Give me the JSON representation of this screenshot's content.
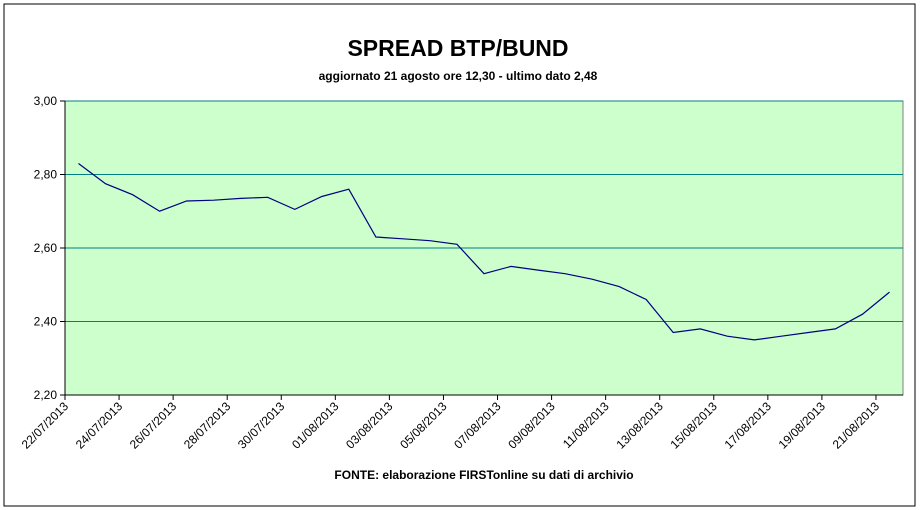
{
  "chart_data": {
    "type": "line",
    "title": "SPREAD BTP/BUND",
    "subtitle": "aggiornato 21 agosto ore 12,30 - ultimo dato 2,48",
    "source": "FONTE: elaborazione FIRSTonline su dati di archivio",
    "categories": [
      "22/07/2013",
      null,
      "24/07/2013",
      null,
      "26/07/2013",
      null,
      "28/07/2013",
      null,
      "30/07/2013",
      null,
      "01/08/2013",
      null,
      "03/08/2013",
      null,
      "05/08/2013",
      null,
      "07/08/2013",
      null,
      "09/08/2013",
      null,
      "11/08/2013",
      null,
      "13/08/2013",
      null,
      "15/08/2013",
      null,
      "17/08/2013",
      null,
      "19/08/2013",
      null,
      "21/08/2013"
    ],
    "values": [
      2.83,
      2.775,
      2.745,
      2.7,
      2.728,
      2.73,
      2.735,
      2.738,
      2.705,
      2.74,
      2.76,
      2.63,
      2.625,
      2.62,
      2.61,
      2.53,
      2.55,
      2.54,
      2.53,
      2.515,
      2.495,
      2.46,
      2.37,
      2.38,
      2.36,
      2.35,
      2.36,
      2.37,
      2.38,
      2.42,
      2.48
    ],
    "color": "#000080",
    "ylim": [
      2.2,
      3.0
    ],
    "yticks": [
      {
        "value": 2.2,
        "label": "2,20"
      },
      {
        "value": 2.4,
        "label": "2,40"
      },
      {
        "value": 2.6,
        "label": "2,60"
      },
      {
        "value": 2.8,
        "label": "2,80"
      },
      {
        "value": 3.0,
        "label": "3,00"
      }
    ],
    "grid": true
  }
}
